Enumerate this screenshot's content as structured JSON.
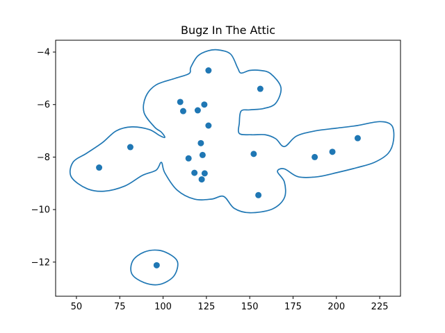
{
  "chart_data": {
    "type": "scatter",
    "title": "Bugz In The Attic",
    "xlabel": "",
    "ylabel": "",
    "xlim": [
      38,
      237
    ],
    "ylim": [
      -13.3,
      -3.55
    ],
    "xticks": [
      50,
      75,
      100,
      125,
      150,
      175,
      200,
      225
    ],
    "yticks": [
      -12,
      -10,
      -8,
      -6,
      -4
    ],
    "grid": false,
    "colors": {
      "marker": "#1f77b4",
      "contour": "#1f77b4",
      "axes": "#000000"
    },
    "points": [
      {
        "x": 63.1,
        "y": -8.4
      },
      {
        "x": 81.1,
        "y": -7.62
      },
      {
        "x": 96.3,
        "y": -12.12
      },
      {
        "x": 109.9,
        "y": -5.9
      },
      {
        "x": 111.6,
        "y": -6.25
      },
      {
        "x": 114.7,
        "y": -8.05
      },
      {
        "x": 118.1,
        "y": -8.6
      },
      {
        "x": 120.0,
        "y": -6.22
      },
      {
        "x": 121.8,
        "y": -7.47
      },
      {
        "x": 122.3,
        "y": -8.85
      },
      {
        "x": 122.8,
        "y": -7.92
      },
      {
        "x": 123.8,
        "y": -6.0
      },
      {
        "x": 124.0,
        "y": -8.62
      },
      {
        "x": 126.2,
        "y": -4.7
      },
      {
        "x": 126.2,
        "y": -6.8
      },
      {
        "x": 152.3,
        "y": -7.88
      },
      {
        "x": 155.0,
        "y": -9.45
      },
      {
        "x": 156.1,
        "y": -5.4
      },
      {
        "x": 187.5,
        "y": -8.0
      },
      {
        "x": 197.7,
        "y": -7.8
      },
      {
        "x": 212.3,
        "y": -7.28
      }
    ],
    "contours": [
      [
        [
          132,
          -3.92
        ],
        [
          139,
          -4.08
        ],
        [
          143,
          -4.6
        ],
        [
          145,
          -4.8
        ],
        [
          150,
          -4.7
        ],
        [
          156,
          -4.7
        ],
        [
          162,
          -4.82
        ],
        [
          168,
          -5.35
        ],
        [
          165,
          -5.95
        ],
        [
          158,
          -6.15
        ],
        [
          150,
          -6.2
        ],
        [
          145,
          -6.25
        ],
        [
          144,
          -6.7
        ],
        [
          144,
          -7.1
        ],
        [
          151,
          -7.15
        ],
        [
          159,
          -7.15
        ],
        [
          165,
          -7.3
        ],
        [
          170,
          -7.6
        ],
        [
          177,
          -7.2
        ],
        [
          188,
          -7.0
        ],
        [
          200,
          -6.9
        ],
        [
          212,
          -6.8
        ],
        [
          225,
          -6.65
        ],
        [
          232,
          -6.8
        ],
        [
          233,
          -7.35
        ],
        [
          230,
          -7.85
        ],
        [
          222,
          -8.2
        ],
        [
          212,
          -8.4
        ],
        [
          201,
          -8.58
        ],
        [
          189,
          -8.75
        ],
        [
          178,
          -8.75
        ],
        [
          170,
          -8.45
        ],
        [
          166,
          -8.55
        ],
        [
          170,
          -8.95
        ],
        [
          170,
          -9.55
        ],
        [
          163,
          -9.98
        ],
        [
          150,
          -10.12
        ],
        [
          141,
          -9.95
        ],
        [
          135,
          -9.5
        ],
        [
          128,
          -9.6
        ],
        [
          118,
          -9.6
        ],
        [
          108,
          -9.25
        ],
        [
          101,
          -8.6
        ],
        [
          99,
          -8.2
        ],
        [
          96,
          -8.5
        ],
        [
          88,
          -8.7
        ],
        [
          78,
          -9.1
        ],
        [
          66,
          -9.3
        ],
        [
          56,
          -9.2
        ],
        [
          47,
          -8.75
        ],
        [
          48,
          -8.2
        ],
        [
          56,
          -7.85
        ],
        [
          65,
          -7.45
        ],
        [
          73,
          -7.0
        ],
        [
          82,
          -6.85
        ],
        [
          92,
          -6.95
        ],
        [
          98,
          -7.18
        ],
        [
          101,
          -7.25
        ],
        [
          99,
          -7.05
        ],
        [
          95,
          -6.85
        ],
        [
          89,
          -6.3
        ],
        [
          90,
          -5.7
        ],
        [
          96,
          -5.25
        ],
        [
          107,
          -5.0
        ],
        [
          115,
          -4.82
        ],
        [
          116,
          -4.58
        ],
        [
          120,
          -4.15
        ],
        [
          126,
          -3.95
        ],
        [
          132,
          -3.92
        ]
      ],
      [
        [
          97.5,
          -11.55
        ],
        [
          105,
          -11.75
        ],
        [
          108.5,
          -12.05
        ],
        [
          106,
          -12.55
        ],
        [
          98,
          -12.85
        ],
        [
          89,
          -12.78
        ],
        [
          82,
          -12.45
        ],
        [
          82.5,
          -11.95
        ],
        [
          89,
          -11.62
        ],
        [
          97.5,
          -11.55
        ]
      ]
    ]
  }
}
